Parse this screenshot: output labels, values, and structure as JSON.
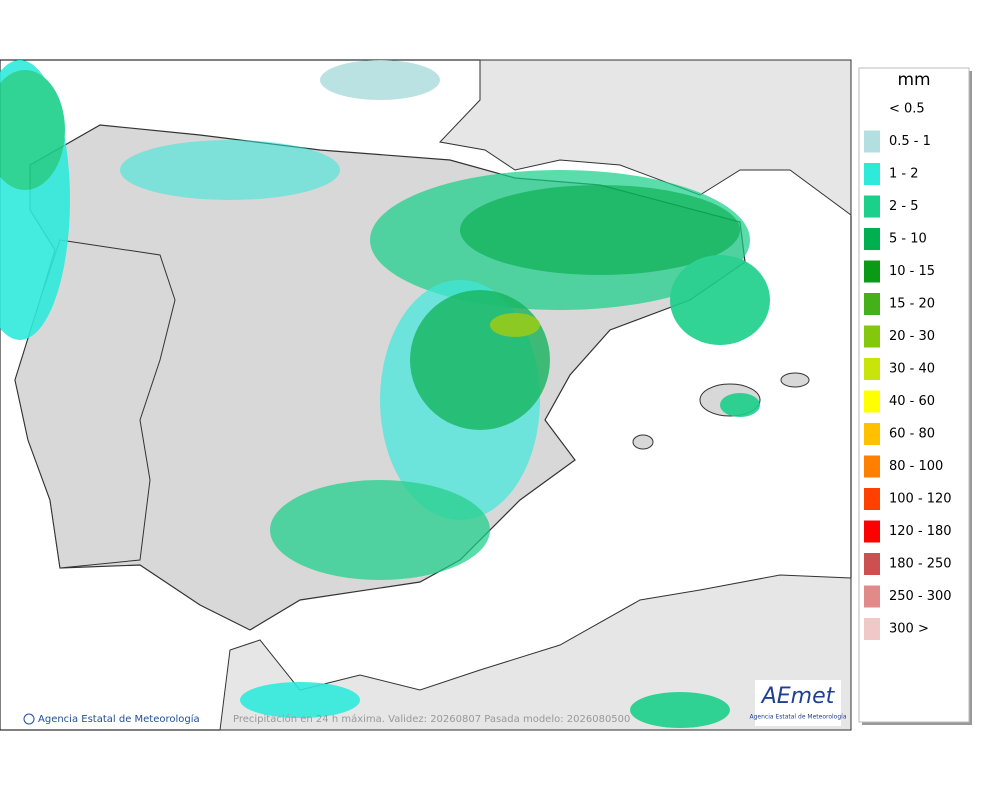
{
  "legend": {
    "title": "mm",
    "items": [
      {
        "label": "< 0.5"
      },
      {
        "label": "0.5 - 1",
        "color": "#b4dfe0"
      },
      {
        "label": "1 - 2",
        "color": "#2eeadb"
      },
      {
        "label": "2 - 5",
        "color": "#1ad08a"
      },
      {
        "label": "5 - 10",
        "color": "#00b050"
      },
      {
        "label": "10 - 15",
        "color": "#0a9a16"
      },
      {
        "label": "15 - 20",
        "color": "#44b01a"
      },
      {
        "label": "20 - 30",
        "color": "#84c80e"
      },
      {
        "label": "30 - 40",
        "color": "#c8e40a"
      },
      {
        "label": "40 - 60",
        "color": "#ffff00"
      },
      {
        "label": "60 - 80",
        "color": "#ffc000"
      },
      {
        "label": "80 - 100",
        "color": "#ff8000"
      },
      {
        "label": "100 - 120",
        "color": "#ff4000"
      },
      {
        "label": "120 - 180",
        "color": "#ff0000"
      },
      {
        "label": "180 - 250",
        "color": "#cc5050"
      },
      {
        "label": "250 - 300",
        "color": "#e08a8a"
      },
      {
        "label": "300 >",
        "color": "#f0c8c8"
      }
    ]
  },
  "footer": {
    "agency": "Agencia Estatal de Meteorología",
    "caption": "Precipitación en 24 h máxima. Validez: 20260807 Pasada modelo: 2026080500"
  },
  "logo": {
    "name": "AEmet",
    "subtitle": "Agencia Estatal de Meteorología"
  }
}
